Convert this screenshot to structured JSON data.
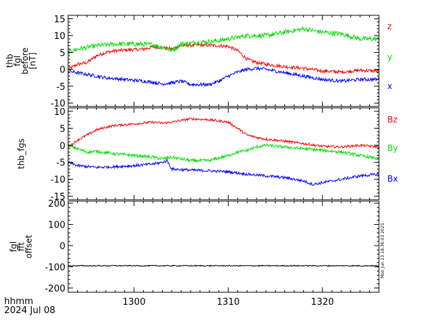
{
  "colors": {
    "red": "#ff0000",
    "green": "#00dd00",
    "blue": "#0000ff",
    "axis": "#000000"
  },
  "footer": {
    "line1": "hhmm",
    "line2": "2024 Jul 08"
  },
  "stamp": "Mon Jun 23 18:36:03 2025",
  "chart_data": [
    {
      "type": "line",
      "ylabel_lines": [
        "thb",
        "fgl",
        "before",
        "[nT]"
      ],
      "ylim": [
        -11,
        16
      ],
      "yticks": [
        -10,
        -5,
        0,
        5,
        10,
        15
      ],
      "xlim": [
        1293,
        1326
      ],
      "xticks": [
        1300,
        1310,
        1320
      ],
      "series": [
        {
          "name": "z",
          "color": "#ff0000",
          "noise": 0.5,
          "points": [
            [
              1293,
              0
            ],
            [
              1294,
              1.5
            ],
            [
              1295,
              2
            ],
            [
              1296,
              4
            ],
            [
              1297,
              5
            ],
            [
              1298,
              5.5
            ],
            [
              1299,
              5.7
            ],
            [
              1300,
              5.8
            ],
            [
              1301,
              6
            ],
            [
              1302,
              6.6
            ],
            [
              1303,
              6.5
            ],
            [
              1304,
              6
            ],
            [
              1305,
              7
            ],
            [
              1307,
              7.2
            ],
            [
              1309,
              7
            ],
            [
              1310,
              6.8
            ],
            [
              1311,
              5.5
            ],
            [
              1312,
              3
            ],
            [
              1313,
              2
            ],
            [
              1314,
              1.5
            ],
            [
              1316,
              0.8
            ],
            [
              1318,
              0.3
            ],
            [
              1320,
              -0.5
            ],
            [
              1322,
              -0.8
            ],
            [
              1324,
              -0.3
            ],
            [
              1326,
              -0.5
            ]
          ]
        },
        {
          "name": "y",
          "color": "#00dd00",
          "noise": 0.7,
          "points": [
            [
              1293,
              5
            ],
            [
              1294,
              6
            ],
            [
              1295,
              6.5
            ],
            [
              1296,
              7
            ],
            [
              1298,
              7.5
            ],
            [
              1300,
              7.5
            ],
            [
              1302,
              7.3
            ],
            [
              1303,
              6.5
            ],
            [
              1304,
              5.5
            ],
            [
              1305,
              7.5
            ],
            [
              1307,
              8
            ],
            [
              1309,
              8.5
            ],
            [
              1310,
              9
            ],
            [
              1312,
              10
            ],
            [
              1314,
              10
            ],
            [
              1316,
              11
            ],
            [
              1318,
              12
            ],
            [
              1320,
              11
            ],
            [
              1322,
              10.5
            ],
            [
              1324,
              9
            ],
            [
              1326,
              9
            ]
          ]
        },
        {
          "name": "x",
          "color": "#0000ff",
          "noise": 0.5,
          "points": [
            [
              1293,
              -0.5
            ],
            [
              1295,
              -1.5
            ],
            [
              1297,
              -2.5
            ],
            [
              1299,
              -3
            ],
            [
              1301,
              -3.5
            ],
            [
              1302,
              -3.8
            ],
            [
              1303,
              -4.3
            ],
            [
              1304,
              -4
            ],
            [
              1305,
              -3.5
            ],
            [
              1306,
              -4.5
            ],
            [
              1308,
              -4.5
            ],
            [
              1309,
              -3.5
            ],
            [
              1310,
              -2
            ],
            [
              1311,
              -0.8
            ],
            [
              1312,
              0
            ],
            [
              1313,
              0.3
            ],
            [
              1314,
              0
            ],
            [
              1316,
              -1
            ],
            [
              1318,
              -2
            ],
            [
              1320,
              -3
            ],
            [
              1322,
              -3.5
            ],
            [
              1324,
              -3
            ],
            [
              1326,
              -3
            ]
          ]
        }
      ]
    },
    {
      "type": "line",
      "ylabel_lines": [
        "thb_fgs"
      ],
      "ylim": [
        -16,
        11
      ],
      "yticks": [
        -15,
        -10,
        -5,
        0,
        5,
        10
      ],
      "xlim": [
        1293,
        1326
      ],
      "xticks": [
        1300,
        1310,
        1320
      ],
      "series": [
        {
          "name": "Bz",
          "color": "#ff0000",
          "noise": 0.35,
          "points": [
            [
              1293,
              -0.5
            ],
            [
              1294,
              1.5
            ],
            [
              1295,
              3
            ],
            [
              1296,
              4.5
            ],
            [
              1297,
              5.3
            ],
            [
              1298,
              5.8
            ],
            [
              1300,
              6.3
            ],
            [
              1302,
              6.8
            ],
            [
              1303,
              6.5
            ],
            [
              1304,
              6.8
            ],
            [
              1305,
              7.3
            ],
            [
              1306,
              7.8
            ],
            [
              1308,
              7.5
            ],
            [
              1310,
              6.8
            ],
            [
              1311,
              5
            ],
            [
              1312,
              3
            ],
            [
              1313,
              2.3
            ],
            [
              1314,
              1.8
            ],
            [
              1316,
              1.2
            ],
            [
              1318,
              0.5
            ],
            [
              1320,
              -0.3
            ],
            [
              1322,
              -0.5
            ],
            [
              1324,
              0
            ],
            [
              1326,
              -0.5
            ]
          ]
        },
        {
          "name": "By",
          "color": "#00dd00",
          "noise": 0.45,
          "points": [
            [
              1293,
              0
            ],
            [
              1294,
              -1
            ],
            [
              1295,
              -2
            ],
            [
              1296,
              -1.8
            ],
            [
              1298,
              -2.5
            ],
            [
              1300,
              -3
            ],
            [
              1302,
              -3.5
            ],
            [
              1303,
              -4
            ],
            [
              1304,
              -3.5
            ],
            [
              1305,
              -4
            ],
            [
              1306,
              -4.5
            ],
            [
              1308,
              -4.5
            ],
            [
              1310,
              -3
            ],
            [
              1311,
              -2
            ],
            [
              1312,
              -1.5
            ],
            [
              1313,
              -0.5
            ],
            [
              1314,
              0
            ],
            [
              1316,
              -0.5
            ],
            [
              1318,
              -1
            ],
            [
              1320,
              -1.5
            ],
            [
              1322,
              -2
            ],
            [
              1324,
              -3
            ],
            [
              1326,
              -4
            ]
          ]
        },
        {
          "name": "Bx",
          "color": "#0000ff",
          "noise": 0.4,
          "points": [
            [
              1293,
              -5
            ],
            [
              1294,
              -6
            ],
            [
              1296,
              -6.5
            ],
            [
              1298,
              -6.3
            ],
            [
              1300,
              -6
            ],
            [
              1302,
              -5.5
            ],
            [
              1303,
              -5
            ],
            [
              1303.5,
              -4.5
            ],
            [
              1304,
              -7
            ],
            [
              1306,
              -7.3
            ],
            [
              1308,
              -7.5
            ],
            [
              1310,
              -7.8
            ],
            [
              1312,
              -8.5
            ],
            [
              1314,
              -9
            ],
            [
              1316,
              -9.5
            ],
            [
              1318,
              -10.5
            ],
            [
              1319,
              -11.5
            ],
            [
              1320,
              -11
            ],
            [
              1322,
              -10
            ],
            [
              1324,
              -9
            ],
            [
              1326,
              -8.5
            ]
          ]
        }
      ]
    },
    {
      "type": "line",
      "ylabel_lines": [
        "fgl",
        "fft",
        "offset"
      ],
      "ylim": [
        -220,
        210
      ],
      "yticks": [
        -200,
        -100,
        0,
        100,
        200
      ],
      "xlim": [
        1293,
        1326
      ],
      "xticks": [
        1300,
        1310,
        1320
      ],
      "series": [
        {
          "name": "offset",
          "color": "#000000",
          "noise": 2.5,
          "points": [
            [
              1293,
              -95
            ],
            [
              1326,
              -95
            ]
          ]
        }
      ]
    }
  ]
}
